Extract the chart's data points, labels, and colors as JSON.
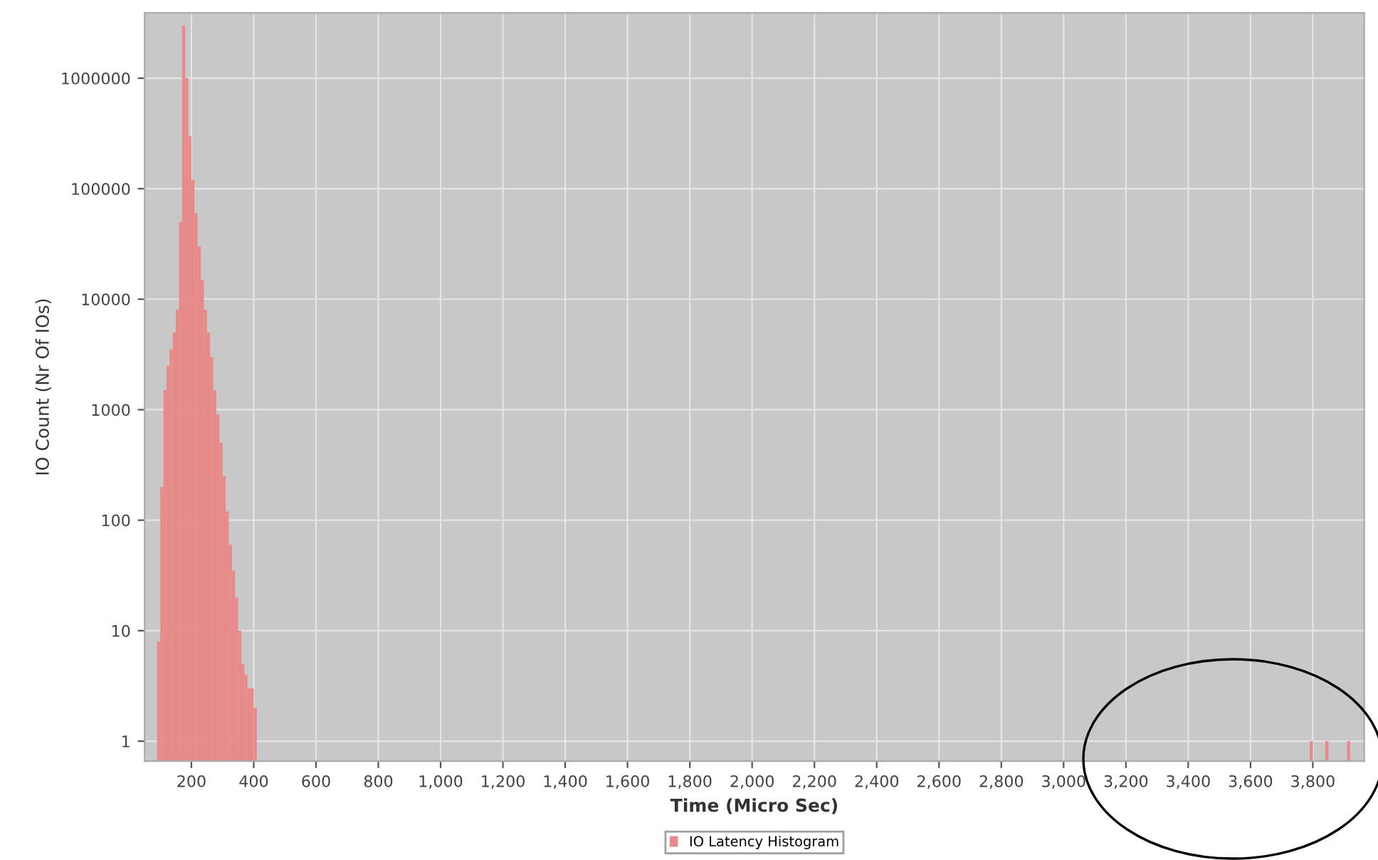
{
  "chart_data": {
    "type": "histogram",
    "xlabel": "Time (Micro Sec)",
    "ylabel": "IO Count (Nr Of IOs)",
    "bins": [
      90,
      100,
      110,
      120,
      130,
      140,
      150,
      160,
      170,
      180,
      190,
      200,
      210,
      220,
      230,
      240,
      250,
      260,
      270,
      280,
      290,
      300,
      310,
      320,
      330,
      340,
      350,
      360,
      370,
      380,
      390,
      400,
      410,
      3790,
      3800,
      3840,
      3850,
      3910,
      3920
    ],
    "series": [
      {
        "name": "IO Latency Histogram",
        "color": "#e8898a",
        "values": [
          8,
          200,
          1500,
          2500,
          3500,
          5000,
          8000,
          50000,
          3000000,
          1000000,
          300000,
          120000,
          60000,
          30000,
          15000,
          8000,
          5000,
          3000,
          1500,
          900,
          500,
          250,
          120,
          60,
          35,
          20,
          10,
          5,
          4,
          3,
          3,
          2,
          null,
          1,
          null,
          1,
          null,
          1
        ]
      }
    ],
    "log": "y",
    "xlim": [
      50,
      3965
    ],
    "xticks": [
      200,
      400,
      600,
      800,
      {
        "value": 1000,
        "label": "1,000"
      },
      {
        "value": 1200,
        "label": "1,200"
      },
      {
        "value": 1400,
        "label": "1,400"
      },
      {
        "value": 1600,
        "label": "1,600"
      },
      {
        "value": 1800,
        "label": "1,800"
      },
      {
        "value": 2000,
        "label": "2,000"
      },
      {
        "value": 2200,
        "label": "2,200"
      },
      {
        "value": 2400,
        "label": "2,400"
      },
      {
        "value": 2600,
        "label": "2,600"
      },
      {
        "value": 2800,
        "label": "2,800"
      },
      {
        "value": 3000,
        "label": "3,000"
      },
      {
        "value": 3200,
        "label": "3,200"
      },
      {
        "value": 3400,
        "label": "3,400"
      },
      {
        "value": 3600,
        "label": "3,600"
      },
      {
        "value": 3800,
        "label": "3,800"
      }
    ],
    "ylim": [
      0.66,
      3900000
    ],
    "yticks": [
      1,
      10,
      100,
      1000,
      10000,
      100000,
      1000000
    ],
    "grid": true,
    "legend": "bottom"
  }
}
